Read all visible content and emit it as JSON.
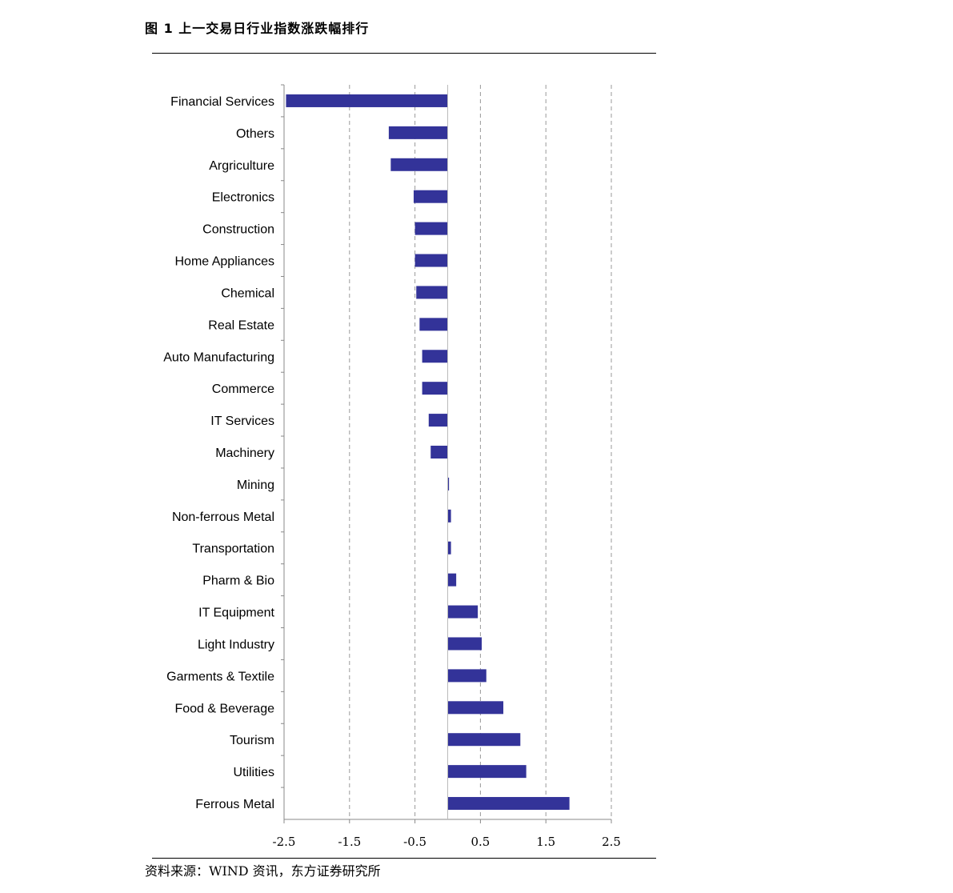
{
  "figure": {
    "title": "图 1  上一交易日行业指数涨跌幅排行",
    "source": "资料来源：WIND 资讯，东方证券研究所"
  },
  "chart_data": {
    "type": "bar",
    "orientation": "horizontal",
    "title": "",
    "xlabel": "",
    "ylabel": "",
    "xlim": [
      -2.5,
      2.5
    ],
    "x_ticks": [
      -2.5,
      -1.5,
      -0.5,
      0.5,
      1.5,
      2.5
    ],
    "x_tick_labels": [
      "-2.5",
      "-1.5",
      "-0.5",
      "0.5",
      "1.5",
      "2.5"
    ],
    "grid": "vertical-dashed",
    "bar_color": "#333399",
    "categories": [
      "Financial Services",
      "Others",
      "Argriculture",
      "Electronics",
      "Construction",
      "Home Appliances",
      "Chemical",
      "Real Estate",
      "Auto Manufacturing",
      "Commerce",
      "IT Services",
      "Machinery",
      "Mining",
      "Non-ferrous Metal",
      "Transportation",
      "Pharm & Bio",
      "IT Equipment",
      "Light Industry",
      "Garments & Textile",
      "Food & Beverage",
      "Tourism",
      "Utilities",
      "Ferrous Metal"
    ],
    "values": [
      -2.47,
      -0.9,
      -0.87,
      -0.52,
      -0.5,
      -0.5,
      -0.48,
      -0.43,
      -0.39,
      -0.39,
      -0.29,
      -0.26,
      0.02,
      0.05,
      0.05,
      0.13,
      0.46,
      0.52,
      0.59,
      0.85,
      1.11,
      1.2,
      1.86
    ]
  }
}
